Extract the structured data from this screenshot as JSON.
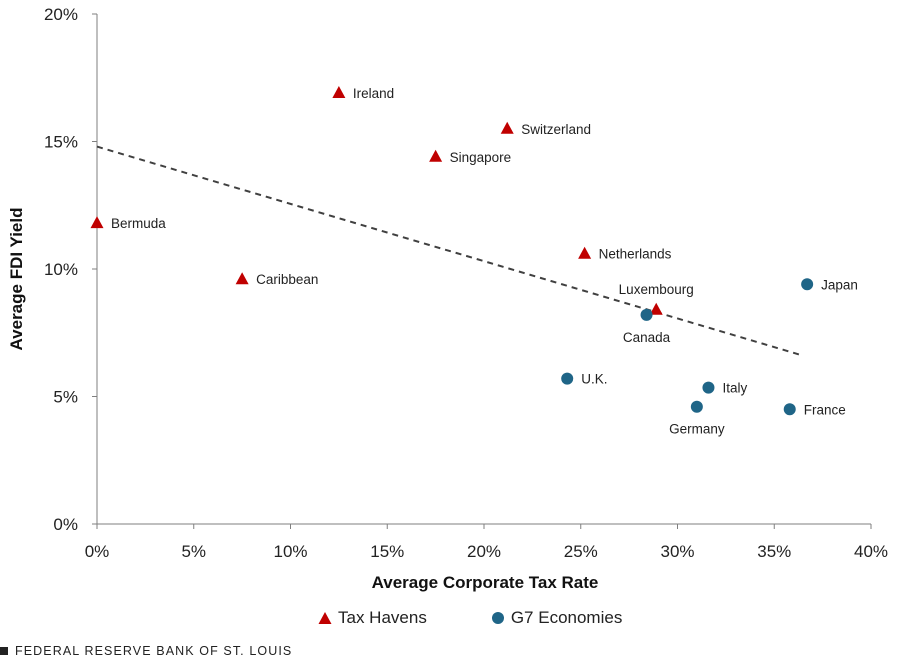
{
  "colors": {
    "tax_havens": "#C00000",
    "g7": "#1F6587",
    "trendline": "#404040",
    "axis": "#7f7f7f"
  },
  "chart_data": {
    "type": "scatter",
    "xlabel": "Average Corporate  Tax Rate",
    "ylabel": "Average FDI Yield",
    "xlim": [
      0,
      40
    ],
    "ylim": [
      0,
      20
    ],
    "x_ticks": [
      0,
      5,
      10,
      15,
      20,
      25,
      30,
      35,
      40
    ],
    "y_ticks": [
      0,
      5,
      10,
      15,
      20
    ],
    "x_tick_labels": [
      "0%",
      "5%",
      "10%",
      "15%",
      "20%",
      "25%",
      "30%",
      "35%",
      "40%"
    ],
    "y_tick_labels": [
      "0%",
      "5%",
      "10%",
      "15%",
      "20%"
    ],
    "series": [
      {
        "name": "Tax Havens",
        "marker": "triangle",
        "points": [
          {
            "label": "Bermuda",
            "x": 0.0,
            "y": 11.8,
            "label_pos": "right"
          },
          {
            "label": "Caribbean",
            "x": 7.5,
            "y": 9.6,
            "label_pos": "right"
          },
          {
            "label": "Ireland",
            "x": 12.5,
            "y": 16.9,
            "label_pos": "right"
          },
          {
            "label": "Singapore",
            "x": 17.5,
            "y": 14.4,
            "label_pos": "right"
          },
          {
            "label": "Switzerland",
            "x": 21.2,
            "y": 15.5,
            "label_pos": "right"
          },
          {
            "label": "Netherlands",
            "x": 25.2,
            "y": 10.6,
            "label_pos": "right"
          },
          {
            "label": "Luxembourg",
            "x": 28.9,
            "y": 8.4,
            "label_pos": "above"
          }
        ]
      },
      {
        "name": "G7 Economies",
        "marker": "circle",
        "points": [
          {
            "label": "Japan",
            "x": 36.7,
            "y": 9.4,
            "label_pos": "right"
          },
          {
            "label": "Canada",
            "x": 28.4,
            "y": 8.2,
            "label_pos": "below"
          },
          {
            "label": "U.K.",
            "x": 24.3,
            "y": 5.7,
            "label_pos": "right"
          },
          {
            "label": "Italy",
            "x": 31.6,
            "y": 5.35,
            "label_pos": "right"
          },
          {
            "label": "Germany",
            "x": 31.0,
            "y": 4.6,
            "label_pos": "below"
          },
          {
            "label": "France",
            "x": 35.8,
            "y": 4.5,
            "label_pos": "right"
          }
        ]
      }
    ],
    "trendline": {
      "style": "dashed",
      "start": [
        0,
        14.8
      ],
      "end": [
        36.5,
        6.6
      ]
    },
    "legend": {
      "placement": "bottom",
      "items": [
        "Tax Havens",
        "G7 Economies"
      ]
    }
  },
  "footer": {
    "source": "FEDERAL RESERVE BANK OF ST. LOUIS"
  }
}
